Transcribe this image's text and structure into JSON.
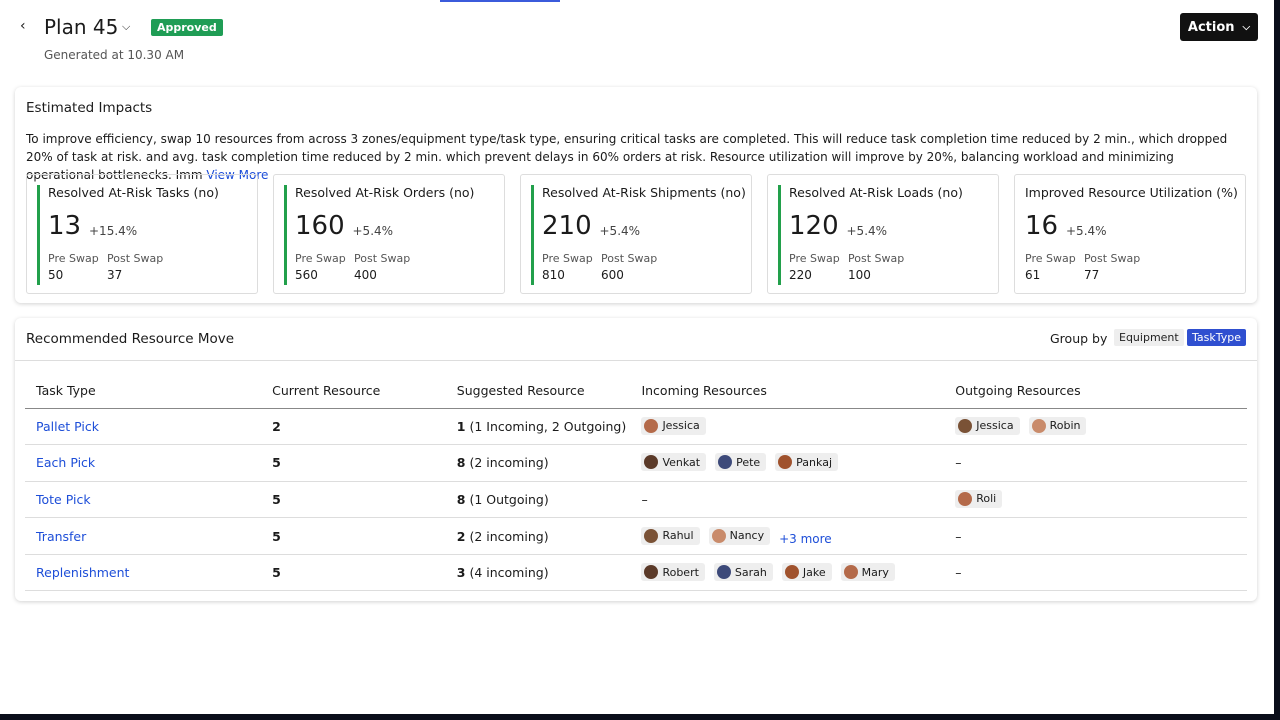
{
  "header": {
    "title": "Plan 45",
    "status": "Approved",
    "subtitle": "Generated at 10.30 AM",
    "action": "Action"
  },
  "impacts": {
    "title": "Estimated Impacts",
    "description": "To improve efficiency, swap 10 resources from across 3 zones/equipment type/task type, ensuring critical tasks are completed. This will reduce task completion time reduced by 2 min., which dropped 20% of task at risk.  and avg. task completion time reduced by 2 min. which prevent delays in 60% orders at risk. Resource utilization will improve by 20%, balancing workload and minimizing operational bottlenecks. Imm",
    "view_more": "View More",
    "cards": [
      {
        "title": "Resolved At-Risk Tasks (no)",
        "value": 13,
        "change": "+15.4%",
        "pre_label": "Pre Swap",
        "pre": 50,
        "post_label": "Post Swap",
        "post": 37
      },
      {
        "title": "Resolved At-Risk Orders (no)",
        "value": 160,
        "change": "+5.4%",
        "pre_label": "Pre Swap",
        "pre": 560,
        "post_label": "Post Swap",
        "post": 400
      },
      {
        "title": "Resolved At-Risk Shipments (no)",
        "value": 210,
        "change": "+5.4%",
        "pre_label": "Pre Swap",
        "pre": 810,
        "post_label": "Post Swap",
        "post": 600
      },
      {
        "title": "Resolved At-Risk Loads (no)",
        "value": 120,
        "change": "+5.4%",
        "pre_label": "Pre Swap",
        "pre": 220,
        "post_label": "Post Swap",
        "post": 100
      },
      {
        "title": "Improved Resource Utilization (%)",
        "value": 16,
        "change": "+5.4%",
        "pre_label": "Pre Swap",
        "pre": 61,
        "post_label": "Post Swap",
        "post": 77
      }
    ]
  },
  "moves": {
    "title": "Recommended Resource Move",
    "group_by": "Group by",
    "groups": [
      "Equipment",
      "TaskType"
    ],
    "columns": [
      "Task Type",
      "Current Resource",
      "Suggested Resource",
      "Incoming Resources",
      "Outgoing Resources"
    ],
    "rows": [
      {
        "task": "Pallet Pick",
        "current": 2,
        "suggested": 1,
        "suggested_note": "(1 Incoming, 2 Outgoing)",
        "incoming": [
          "Jessica"
        ],
        "outgoing": [
          "Jessica",
          "Robin"
        ]
      },
      {
        "task": "Each Pick",
        "current": 5,
        "suggested": 8,
        "suggested_note": "(2 incoming)",
        "incoming": [
          "Venkat",
          "Pete",
          "Pankaj"
        ],
        "outgoing": "–"
      },
      {
        "task": "Tote Pick",
        "current": 5,
        "suggested": 8,
        "suggested_note": "(1 Outgoing)",
        "incoming": "–",
        "outgoing": [
          "Roli"
        ]
      },
      {
        "task": "Transfer",
        "current": 5,
        "suggested": 2,
        "suggested_note": "(2 incoming)",
        "incoming": [
          "Rahul",
          "Nancy"
        ],
        "incoming_more": "+3 more",
        "outgoing": "–"
      },
      {
        "task": "Replenishment",
        "current": 5,
        "suggested": 3,
        "suggested_note": "(4 incoming)",
        "incoming": [
          "Robert",
          "Sarah",
          "Jake",
          "Mary"
        ],
        "outgoing": "–"
      }
    ]
  }
}
